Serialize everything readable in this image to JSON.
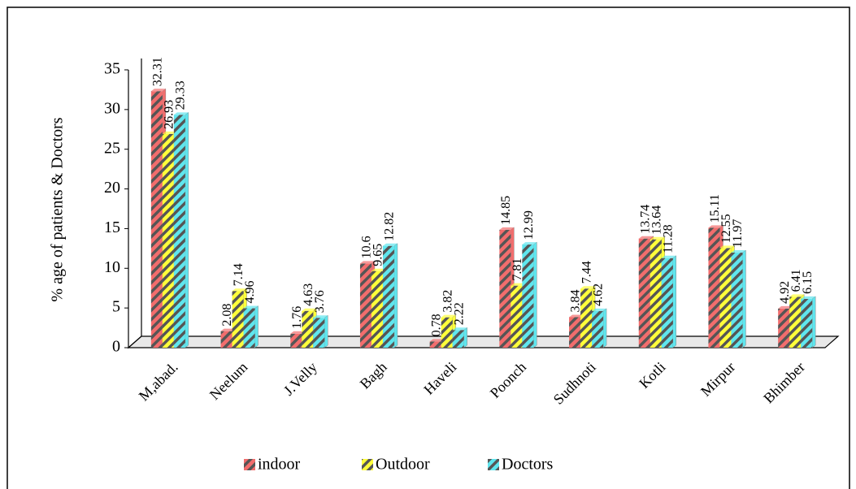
{
  "chart_data": {
    "type": "bar",
    "ylabel": "% age of patients & Doctors",
    "categories": [
      "M,abad.",
      "Neelum",
      "J.Velly",
      "Bagh",
      "Haveli",
      "Poonch",
      "Sudhnoti",
      "Kotli",
      "Mirpur",
      "Bhimber"
    ],
    "series": [
      {
        "name": "indoor",
        "color": "#f26d6d",
        "values": [
          32.31,
          2.08,
          1.76,
          10.6,
          0.78,
          14.85,
          3.84,
          13.74,
          15.11,
          4.92
        ]
      },
      {
        "name": "Outdoor",
        "color": "#ffff3a",
        "values": [
          26.93,
          7.14,
          4.63,
          9.65,
          3.82,
          7.81,
          7.44,
          13.64,
          12.55,
          6.41
        ]
      },
      {
        "name": "Doctors",
        "color": "#5fe6ee",
        "values": [
          29.33,
          4.96,
          3.76,
          12.82,
          2.22,
          12.99,
          4.62,
          11.28,
          11.97,
          6.15
        ]
      }
    ],
    "ylim": [
      0,
      35
    ],
    "yticks": [
      0,
      5,
      10,
      15,
      20,
      25,
      30,
      35
    ],
    "legend": "bottom"
  }
}
